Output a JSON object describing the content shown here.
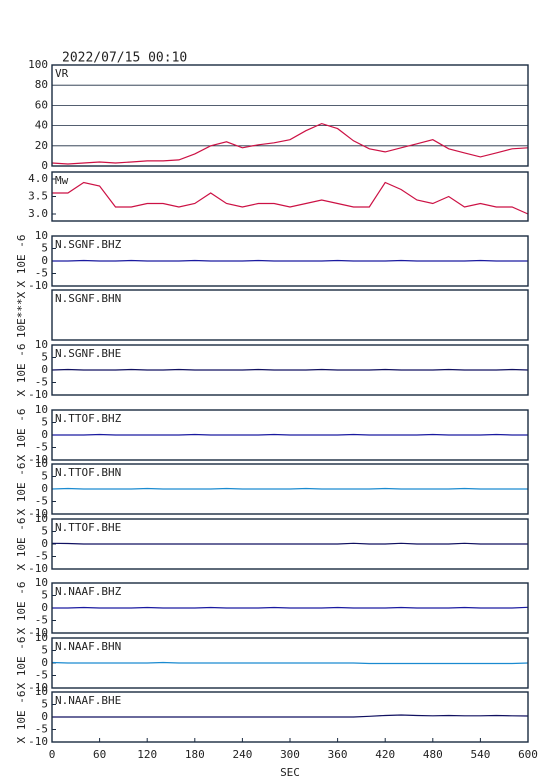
{
  "title": "2022/07/15 00:10",
  "xlabel": "SEC",
  "xlim": [
    0,
    600
  ],
  "xticks": [
    0,
    60,
    120,
    180,
    240,
    300,
    360,
    420,
    480,
    540,
    600
  ],
  "x": [
    0,
    20,
    40,
    60,
    80,
    100,
    120,
    140,
    160,
    180,
    200,
    220,
    240,
    260,
    280,
    300,
    320,
    340,
    360,
    380,
    400,
    420,
    440,
    460,
    480,
    500,
    520,
    540,
    560,
    580,
    600
  ],
  "chart_data": [
    {
      "type": "line",
      "title": "VR",
      "color": "#cc1144",
      "ylim": [
        0,
        100
      ],
      "yticks": [
        0,
        20,
        40,
        60,
        80,
        100
      ],
      "grid": true,
      "values": [
        3,
        2,
        3,
        4,
        3,
        4,
        5,
        5,
        6,
        12,
        20,
        24,
        18,
        21,
        23,
        26,
        35,
        42,
        37,
        25,
        17,
        14,
        18,
        22,
        26,
        17,
        13,
        9,
        13,
        17,
        18
      ]
    },
    {
      "type": "line",
      "title": "Mw",
      "color": "#cc1144",
      "ylim": [
        2.8,
        4.2
      ],
      "yticks": [
        {
          "value": 3,
          "label": "3.0"
        },
        3.5,
        {
          "value": 4,
          "label": "4.0"
        }
      ],
      "grid": false,
      "values": [
        3.6,
        3.6,
        3.9,
        3.8,
        3.2,
        3.2,
        3.3,
        3.3,
        3.2,
        3.3,
        3.6,
        3.3,
        3.2,
        3.3,
        3.3,
        3.2,
        3.3,
        3.4,
        3.3,
        3.2,
        3.2,
        3.9,
        3.7,
        3.4,
        3.3,
        3.5,
        3.2,
        3.3,
        3.2,
        3.2,
        3.0
      ]
    },
    {
      "type": "line",
      "title": "N.SGNF.BHZ",
      "ylabel": "X 10E -6",
      "color": "#1a1aa0",
      "ylim": [
        -10,
        10
      ],
      "yticks": [
        -10,
        -5,
        0,
        5,
        10
      ],
      "grid": false,
      "values": [
        0,
        0,
        0.2,
        0,
        0,
        0.2,
        0,
        0,
        0,
        0.2,
        0,
        0,
        0,
        0.2,
        0,
        0,
        0,
        0,
        0.2,
        0,
        0,
        0,
        0.2,
        0,
        0,
        0,
        0,
        0.2,
        0,
        0,
        0
      ]
    },
    {
      "type": "line",
      "title": "N.SGNF.BHN",
      "ylabel": "10E***X"
    },
    {
      "type": "line",
      "title": "N.SGNF.BHE",
      "ylabel": "X 10E -6",
      "color": "#101060",
      "ylim": [
        -10,
        10
      ],
      "yticks": [
        -10,
        -5,
        0,
        5,
        10
      ],
      "grid": false,
      "values": [
        0,
        0.2,
        0,
        0,
        0,
        0.2,
        0,
        0,
        0.2,
        0,
        0,
        0,
        0,
        0.2,
        0,
        0,
        0,
        0.2,
        0,
        0,
        0,
        0.2,
        0,
        0,
        0,
        0.2,
        0,
        0,
        0,
        0.2,
        0
      ]
    },
    {
      "type": "line",
      "title": "N.TTOF.BHZ",
      "ylabel": "X 10E -6",
      "color": "#1a1aa0",
      "ylim": [
        -10,
        10
      ],
      "yticks": [
        -10,
        -5,
        0,
        5,
        10
      ],
      "grid": false,
      "values": [
        0,
        0,
        0,
        0.2,
        0,
        0,
        0,
        0,
        0,
        0.2,
        0,
        0,
        0,
        0,
        0.2,
        0,
        0,
        0,
        0,
        0.2,
        0,
        0,
        0,
        0,
        0.2,
        0,
        0,
        0,
        0.2,
        0,
        0
      ]
    },
    {
      "type": "line",
      "title": "N.TTOF.BHN",
      "ylabel": "X 10E -6",
      "color": "#1a8ad0",
      "ylim": [
        -10,
        10
      ],
      "yticks": [
        -10,
        -5,
        0,
        5,
        10
      ],
      "grid": false,
      "values": [
        0,
        0.2,
        0,
        0,
        0,
        0,
        0.2,
        0,
        0,
        0,
        0,
        0.2,
        0,
        0,
        0,
        0,
        0.2,
        0,
        0,
        0,
        0,
        0.2,
        0,
        0,
        0,
        0,
        0.2,
        0,
        0,
        0,
        0
      ]
    },
    {
      "type": "line",
      "title": "N.TTOF.BHE",
      "ylabel": "X 10E -6",
      "color": "#101060",
      "ylim": [
        -10,
        10
      ],
      "yticks": [
        -10,
        -5,
        0,
        5,
        10
      ],
      "grid": false,
      "values": [
        0.3,
        0.2,
        0,
        0,
        0,
        0,
        0,
        0,
        0,
        0,
        0,
        0,
        0,
        0,
        0,
        0,
        0,
        0,
        0,
        0.3,
        0,
        0,
        0.3,
        0,
        0,
        0,
        0.3,
        0,
        0,
        0,
        0
      ]
    },
    {
      "type": "line",
      "title": "N.NAAF.BHZ",
      "ylabel": "X 10E -6",
      "color": "#1a1aa0",
      "ylim": [
        -10,
        10
      ],
      "yticks": [
        -10,
        -5,
        0,
        5,
        10
      ],
      "grid": false,
      "values": [
        0,
        0,
        0.2,
        0,
        0,
        0,
        0.2,
        0,
        0,
        0,
        0.2,
        0,
        0,
        0,
        0.2,
        0,
        0,
        0,
        0.2,
        0,
        0,
        0,
        0.2,
        0,
        0,
        0,
        0.2,
        0,
        0,
        0,
        0.3
      ]
    },
    {
      "type": "line",
      "title": "N.NAAF.BHN",
      "ylabel": "X 10E -6",
      "color": "#1a8ad0",
      "ylim": [
        -10,
        10
      ],
      "yticks": [
        -10,
        -5,
        0,
        5,
        10
      ],
      "grid": false,
      "values": [
        0.2,
        0,
        0,
        0,
        0,
        0,
        0,
        0.2,
        0,
        0,
        0,
        0,
        0,
        0,
        0,
        0,
        0,
        0,
        0,
        0,
        -0.2,
        -0.2,
        -0.2,
        -0.2,
        -0.2,
        -0.2,
        -0.2,
        -0.2,
        -0.2,
        -0.2,
        0
      ]
    },
    {
      "type": "line",
      "title": "N.NAAF.BHE",
      "ylabel": "X 10E -6",
      "color": "#101060",
      "ylim": [
        -10,
        10
      ],
      "yticks": [
        -10,
        -5,
        0,
        5,
        10
      ],
      "grid": false,
      "values": [
        0,
        0,
        0,
        0,
        0,
        0,
        0,
        0,
        0,
        0,
        0,
        0,
        0,
        0,
        0,
        0,
        0,
        0,
        0,
        0,
        0.3,
        0.6,
        0.8,
        0.6,
        0.5,
        0.6,
        0.5,
        0.5,
        0.6,
        0.5,
        0.4
      ]
    }
  ]
}
